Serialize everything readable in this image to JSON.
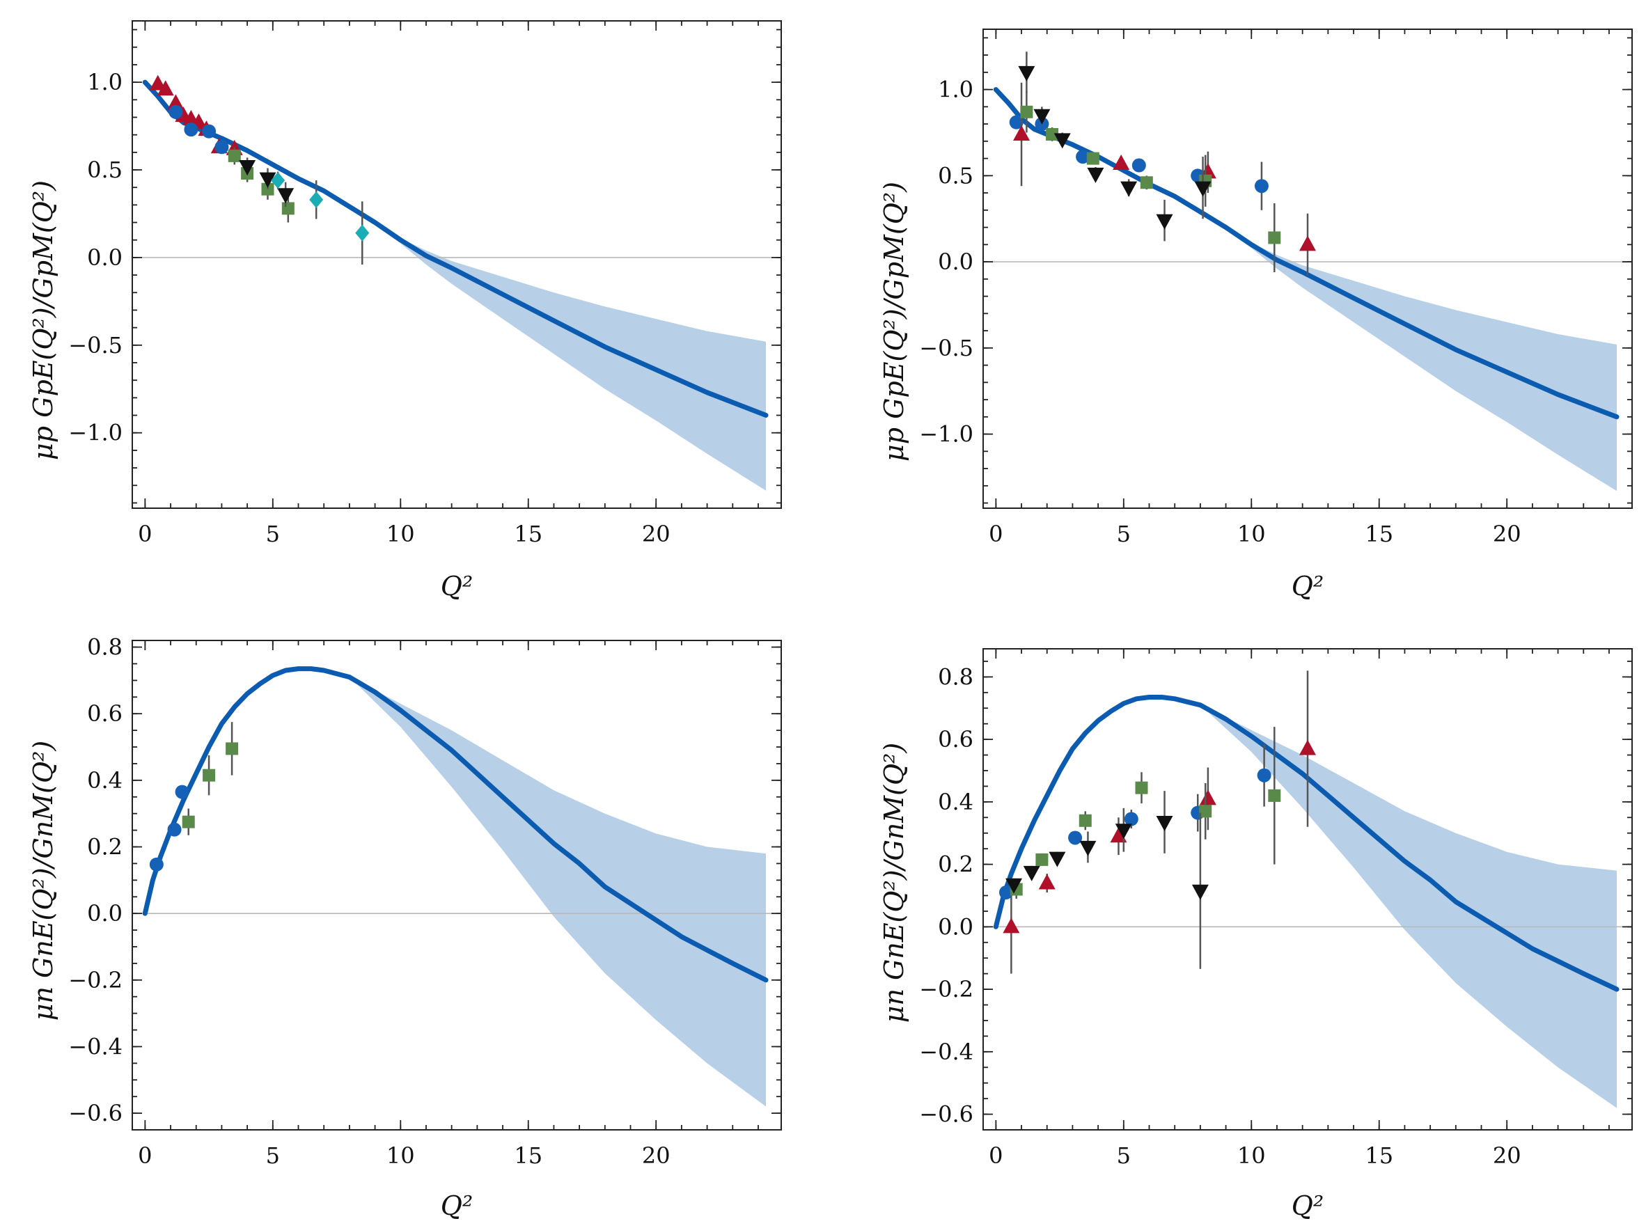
{
  "colors": {
    "curve": "#0b5cb0",
    "band": "#b8cfe8",
    "zero_line": "#b8b8b8",
    "errorbar": "#555555",
    "series_blue_circle": "#1661b8",
    "series_red_triangle": "#b0102a",
    "series_green_square": "#5a8a4a",
    "series_black_triangle_down": "#111111",
    "series_cyan_diamond": "#1aadb5"
  },
  "chart_data": [
    {
      "id": "top-left",
      "type": "scatter",
      "title": "",
      "xlabel": "Q²",
      "ylabel": "μp GpE(Q²)/GpM(Q²)",
      "xlim": [
        -0.5,
        24.9
      ],
      "ylim": [
        -1.43,
        1.35
      ],
      "xticks": [
        0,
        5,
        10,
        15,
        20
      ],
      "yticks": [
        1.0,
        0.5,
        0.0,
        -0.5,
        -1.0
      ],
      "xtick_labels": [
        "0",
        "5",
        "10",
        "15",
        "20"
      ],
      "ytick_labels": [
        "1.0",
        "0.5",
        "0.0",
        "−0.5",
        "−1.0"
      ],
      "x_minor_step": 1,
      "y_minor_step": 0.1,
      "curve": {
        "x": [
          0,
          0.5,
          1,
          1.5,
          2,
          2.5,
          3,
          4,
          5,
          6,
          7,
          8,
          9,
          10,
          11,
          12,
          14,
          16,
          18,
          20,
          22,
          24.3
        ],
        "y": [
          1.0,
          0.92,
          0.83,
          0.77,
          0.74,
          0.71,
          0.68,
          0.61,
          0.53,
          0.45,
          0.38,
          0.29,
          0.2,
          0.1,
          0.01,
          -0.06,
          -0.21,
          -0.36,
          -0.51,
          -0.64,
          -0.77,
          -0.9
        ]
      },
      "band": {
        "x": [
          8,
          10,
          11,
          12,
          14,
          16,
          18,
          20,
          22,
          24.3
        ],
        "lower": [
          0.29,
          0.08,
          -0.04,
          -0.15,
          -0.35,
          -0.55,
          -0.75,
          -0.93,
          -1.12,
          -1.33
        ],
        "upper": [
          0.29,
          0.11,
          0.04,
          -0.02,
          -0.11,
          -0.2,
          -0.28,
          -0.35,
          -0.42,
          -0.48
        ]
      },
      "series": [
        {
          "name": "red-triangles",
          "marker": "triangle-up",
          "color_key": "series_red_triangle",
          "points": [
            {
              "x": 0.5,
              "y": 0.99,
              "e": 0.02
            },
            {
              "x": 0.8,
              "y": 0.96,
              "e": 0.02
            },
            {
              "x": 1.2,
              "y": 0.88,
              "e": 0.02
            },
            {
              "x": 1.5,
              "y": 0.81,
              "e": 0.02
            },
            {
              "x": 1.8,
              "y": 0.79,
              "e": 0.02
            },
            {
              "x": 2.1,
              "y": 0.77,
              "e": 0.02
            },
            {
              "x": 2.4,
              "y": 0.73,
              "e": 0.02
            },
            {
              "x": 2.9,
              "y": 0.63,
              "e": 0.02
            },
            {
              "x": 3.5,
              "y": 0.62,
              "e": 0.03
            }
          ]
        },
        {
          "name": "blue-circles",
          "marker": "circle",
          "color_key": "series_blue_circle",
          "points": [
            {
              "x": 1.2,
              "y": 0.83,
              "e": 0.02
            },
            {
              "x": 1.8,
              "y": 0.73,
              "e": 0.02
            },
            {
              "x": 2.5,
              "y": 0.72,
              "e": 0.02
            },
            {
              "x": 3.0,
              "y": 0.63,
              "e": 0.02
            }
          ]
        },
        {
          "name": "green-squares",
          "marker": "square",
          "color_key": "series_green_square",
          "points": [
            {
              "x": 3.5,
              "y": 0.58,
              "e": 0.05
            },
            {
              "x": 4.0,
              "y": 0.48,
              "e": 0.05
            },
            {
              "x": 4.8,
              "y": 0.39,
              "e": 0.06
            },
            {
              "x": 5.6,
              "y": 0.28,
              "e": 0.08
            }
          ]
        },
        {
          "name": "black-triangles",
          "marker": "triangle-down",
          "color_key": "series_black_triangle_down",
          "points": [
            {
              "x": 4.0,
              "y": 0.52,
              "e": 0.05
            },
            {
              "x": 4.8,
              "y": 0.45,
              "e": 0.06
            },
            {
              "x": 5.5,
              "y": 0.36,
              "e": 0.07
            }
          ]
        },
        {
          "name": "cyan-diamonds",
          "marker": "diamond",
          "color_key": "series_cyan_diamond",
          "points": [
            {
              "x": 5.2,
              "y": 0.44,
              "e": 0.05
            },
            {
              "x": 6.7,
              "y": 0.33,
              "e": 0.11
            },
            {
              "x": 8.5,
              "y": 0.14,
              "e": 0.18
            }
          ]
        }
      ]
    },
    {
      "id": "top-right",
      "type": "scatter",
      "title": "",
      "xlabel": "Q²",
      "ylabel": "μp GpE(Q²)/GpM(Q²)",
      "xlim": [
        -0.5,
        24.9
      ],
      "ylim": [
        -1.43,
        1.35
      ],
      "xticks": [
        0,
        5,
        10,
        15,
        20
      ],
      "yticks": [
        1.0,
        0.5,
        0.0,
        -0.5,
        -1.0
      ],
      "xtick_labels": [
        "0",
        "5",
        "10",
        "15",
        "20"
      ],
      "ytick_labels": [
        "1.0",
        "0.5",
        "0.0",
        "−0.5",
        "−1.0"
      ],
      "x_minor_step": 1,
      "y_minor_step": 0.1,
      "curve": {
        "x": [
          0,
          0.5,
          1,
          1.5,
          2,
          2.5,
          3,
          4,
          5,
          6,
          7,
          8,
          9,
          10,
          11,
          12,
          14,
          16,
          18,
          20,
          22,
          24.3
        ],
        "y": [
          1.0,
          0.92,
          0.83,
          0.77,
          0.74,
          0.71,
          0.68,
          0.61,
          0.53,
          0.45,
          0.38,
          0.29,
          0.2,
          0.1,
          0.01,
          -0.06,
          -0.21,
          -0.36,
          -0.51,
          -0.64,
          -0.77,
          -0.9
        ]
      },
      "band": {
        "x": [
          8,
          10,
          11,
          12,
          14,
          16,
          18,
          20,
          22,
          24.3
        ],
        "lower": [
          0.29,
          0.08,
          -0.04,
          -0.15,
          -0.35,
          -0.55,
          -0.75,
          -0.93,
          -1.12,
          -1.33
        ],
        "upper": [
          0.29,
          0.11,
          0.04,
          -0.02,
          -0.11,
          -0.2,
          -0.28,
          -0.35,
          -0.42,
          -0.48
        ]
      },
      "series": [
        {
          "name": "blue-circles",
          "marker": "circle",
          "color_key": "series_blue_circle",
          "points": [
            {
              "x": 0.8,
              "y": 0.81,
              "e": 0.04
            },
            {
              "x": 1.8,
              "y": 0.8,
              "e": 0.04
            },
            {
              "x": 3.4,
              "y": 0.61,
              "e": 0.03
            },
            {
              "x": 5.6,
              "y": 0.56,
              "e": 0.03
            },
            {
              "x": 7.9,
              "y": 0.5,
              "e": 0.04
            },
            {
              "x": 10.4,
              "y": 0.44,
              "e": 0.14
            }
          ]
        },
        {
          "name": "red-triangles",
          "marker": "triangle-up",
          "color_key": "series_red_triangle",
          "points": [
            {
              "x": 1.0,
              "y": 0.74,
              "e": 0.3
            },
            {
              "x": 4.9,
              "y": 0.57,
              "e": 0.04
            },
            {
              "x": 8.3,
              "y": 0.52,
              "e": 0.12
            },
            {
              "x": 12.2,
              "y": 0.1,
              "e": 0.18
            }
          ]
        },
        {
          "name": "green-squares",
          "marker": "square",
          "color_key": "series_green_square",
          "points": [
            {
              "x": 1.2,
              "y": 0.87,
              "e": 0.12
            },
            {
              "x": 2.2,
              "y": 0.74,
              "e": 0.04
            },
            {
              "x": 3.8,
              "y": 0.6,
              "e": 0.03
            },
            {
              "x": 5.9,
              "y": 0.46,
              "e": 0.04
            },
            {
              "x": 8.2,
              "y": 0.47,
              "e": 0.15
            },
            {
              "x": 10.9,
              "y": 0.14,
              "e": 0.2
            }
          ]
        },
        {
          "name": "black-triangles",
          "marker": "triangle-down",
          "color_key": "series_black_triangle_down",
          "points": [
            {
              "x": 1.2,
              "y": 1.1,
              "e": 0.12
            },
            {
              "x": 1.8,
              "y": 0.85,
              "e": 0.05
            },
            {
              "x": 2.6,
              "y": 0.71,
              "e": 0.04
            },
            {
              "x": 3.9,
              "y": 0.51,
              "e": 0.04
            },
            {
              "x": 5.2,
              "y": 0.43,
              "e": 0.05
            },
            {
              "x": 6.6,
              "y": 0.24,
              "e": 0.12
            },
            {
              "x": 8.1,
              "y": 0.43,
              "e": 0.18
            }
          ]
        }
      ]
    },
    {
      "id": "bottom-left",
      "type": "scatter",
      "title": "",
      "xlabel": "Q²",
      "ylabel": "μn GnE(Q²)/GnM(Q²)",
      "xlim": [
        -0.5,
        24.9
      ],
      "ylim": [
        -0.65,
        0.82
      ],
      "xticks": [
        0,
        5,
        10,
        15,
        20
      ],
      "yticks": [
        0.8,
        0.6,
        0.4,
        0.2,
        0.0,
        -0.2,
        -0.4,
        -0.6
      ],
      "xtick_labels": [
        "0",
        "5",
        "10",
        "15",
        "20"
      ],
      "ytick_labels": [
        "0.8",
        "0.6",
        "0.4",
        "0.2",
        "0.0",
        "−0.2",
        "−0.4",
        "−0.6"
      ],
      "x_minor_step": 1,
      "y_minor_step": 0.05,
      "curve": {
        "x": [
          0,
          0.3,
          0.6,
          1,
          1.5,
          2,
          2.5,
          3,
          3.5,
          4,
          4.5,
          5,
          5.5,
          6,
          6.5,
          7,
          8,
          9,
          10,
          11,
          12,
          13,
          14,
          15,
          16,
          17,
          18,
          19,
          20,
          21,
          22,
          23,
          24.3
        ],
        "y": [
          0,
          0.1,
          0.17,
          0.25,
          0.34,
          0.42,
          0.5,
          0.57,
          0.62,
          0.66,
          0.69,
          0.715,
          0.73,
          0.735,
          0.735,
          0.73,
          0.71,
          0.665,
          0.61,
          0.55,
          0.49,
          0.42,
          0.35,
          0.28,
          0.21,
          0.15,
          0.08,
          0.03,
          -0.02,
          -0.07,
          -0.11,
          -0.15,
          -0.2
        ]
      },
      "band": {
        "x": [
          8,
          10,
          12,
          14,
          16,
          18,
          20,
          22,
          24.3
        ],
        "lower": [
          0.71,
          0.56,
          0.38,
          0.19,
          -0.01,
          -0.18,
          -0.32,
          -0.45,
          -0.58
        ],
        "upper": [
          0.71,
          0.63,
          0.55,
          0.46,
          0.37,
          0.3,
          0.24,
          0.2,
          0.18
        ]
      },
      "series": [
        {
          "name": "blue-circles",
          "marker": "circle",
          "color_key": "series_blue_circle",
          "points": [
            {
              "x": 0.45,
              "y": 0.147,
              "e": 0.01
            },
            {
              "x": 1.15,
              "y": 0.252,
              "e": 0.02
            },
            {
              "x": 1.45,
              "y": 0.365,
              "e": 0.02
            }
          ]
        },
        {
          "name": "green-squares",
          "marker": "square",
          "color_key": "series_green_square",
          "points": [
            {
              "x": 1.7,
              "y": 0.275,
              "e": 0.04
            },
            {
              "x": 2.5,
              "y": 0.415,
              "e": 0.06
            },
            {
              "x": 3.4,
              "y": 0.495,
              "e": 0.08
            }
          ]
        }
      ]
    },
    {
      "id": "bottom-right",
      "type": "scatter",
      "title": "",
      "xlabel": "Q²",
      "ylabel": "μn GnE(Q²)/GnM(Q²)",
      "xlim": [
        -0.5,
        24.9
      ],
      "ylim": [
        -0.65,
        0.89
      ],
      "xticks": [
        0,
        5,
        10,
        15,
        20
      ],
      "yticks": [
        0.8,
        0.6,
        0.4,
        0.2,
        0.0,
        -0.2,
        -0.4,
        -0.6
      ],
      "xtick_labels": [
        "0",
        "5",
        "10",
        "15",
        "20"
      ],
      "ytick_labels": [
        "0.8",
        "0.6",
        "0.4",
        "0.2",
        "0.0",
        "−0.2",
        "−0.4",
        "−0.6"
      ],
      "x_minor_step": 1,
      "y_minor_step": 0.05,
      "curve": {
        "x": [
          0,
          0.3,
          0.6,
          1,
          1.5,
          2,
          2.5,
          3,
          3.5,
          4,
          4.5,
          5,
          5.5,
          6,
          6.5,
          7,
          8,
          9,
          10,
          11,
          12,
          13,
          14,
          15,
          16,
          17,
          18,
          19,
          20,
          21,
          22,
          23,
          24.3
        ],
        "y": [
          0,
          0.1,
          0.17,
          0.25,
          0.34,
          0.42,
          0.5,
          0.57,
          0.62,
          0.66,
          0.69,
          0.715,
          0.73,
          0.735,
          0.735,
          0.73,
          0.71,
          0.665,
          0.61,
          0.55,
          0.49,
          0.42,
          0.35,
          0.28,
          0.21,
          0.15,
          0.08,
          0.03,
          -0.02,
          -0.07,
          -0.11,
          -0.15,
          -0.2
        ]
      },
      "band": {
        "x": [
          8,
          10,
          12,
          14,
          16,
          18,
          20,
          22,
          24.3
        ],
        "lower": [
          0.71,
          0.56,
          0.38,
          0.19,
          -0.01,
          -0.18,
          -0.32,
          -0.45,
          -0.58
        ],
        "upper": [
          0.71,
          0.63,
          0.55,
          0.46,
          0.37,
          0.3,
          0.24,
          0.2,
          0.18
        ]
      },
      "series": [
        {
          "name": "blue-circles",
          "marker": "circle",
          "color_key": "series_blue_circle",
          "points": [
            {
              "x": 0.4,
              "y": 0.11,
              "e": 0.01
            },
            {
              "x": 3.1,
              "y": 0.285,
              "e": 0.02
            },
            {
              "x": 5.3,
              "y": 0.345,
              "e": 0.03
            },
            {
              "x": 7.9,
              "y": 0.365,
              "e": 0.06
            },
            {
              "x": 10.5,
              "y": 0.485,
              "e": 0.1
            }
          ]
        },
        {
          "name": "red-triangles",
          "marker": "triangle-up",
          "color_key": "series_red_triangle",
          "points": [
            {
              "x": 0.6,
              "y": 0.0,
              "e": 0.15
            },
            {
              "x": 2.0,
              "y": 0.14,
              "e": 0.03
            },
            {
              "x": 4.8,
              "y": 0.29,
              "e": 0.06
            },
            {
              "x": 8.3,
              "y": 0.41,
              "e": 0.1
            },
            {
              "x": 12.2,
              "y": 0.57,
              "e": 0.25
            }
          ]
        },
        {
          "name": "green-squares",
          "marker": "square",
          "color_key": "series_green_square",
          "points": [
            {
              "x": 0.8,
              "y": 0.12,
              "e": 0.03
            },
            {
              "x": 1.8,
              "y": 0.215,
              "e": 0.02
            },
            {
              "x": 3.5,
              "y": 0.34,
              "e": 0.03
            },
            {
              "x": 5.7,
              "y": 0.445,
              "e": 0.05
            },
            {
              "x": 8.2,
              "y": 0.37,
              "e": 0.09
            },
            {
              "x": 10.9,
              "y": 0.42,
              "e": 0.22
            }
          ]
        },
        {
          "name": "black-triangles",
          "marker": "triangle-down",
          "color_key": "series_black_triangle_down",
          "points": [
            {
              "x": 0.7,
              "y": 0.135,
              "e": 0.02
            },
            {
              "x": 1.4,
              "y": 0.175,
              "e": 0.02
            },
            {
              "x": 2.4,
              "y": 0.22,
              "e": 0.02
            },
            {
              "x": 3.6,
              "y": 0.255,
              "e": 0.05
            },
            {
              "x": 5.0,
              "y": 0.31,
              "e": 0.07
            },
            {
              "x": 6.6,
              "y": 0.335,
              "e": 0.1
            },
            {
              "x": 8.0,
              "y": 0.115,
              "e": 0.25
            }
          ]
        }
      ]
    }
  ]
}
